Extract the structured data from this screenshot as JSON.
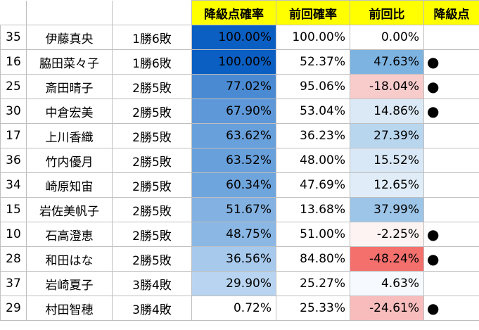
{
  "headers": {
    "prob": "降級点確率",
    "prev": "前回確率",
    "diff": "前回比",
    "mark": "降級点"
  },
  "rows": [
    {
      "num": "35",
      "name": "伊藤真央",
      "record": "1勝6敗",
      "prob": "100.00%",
      "prev": "100.00%",
      "diff": "0.00%",
      "mark": "",
      "prob_bg": "#0b5fc2",
      "diff_bg": "#ffffff"
    },
    {
      "num": "16",
      "name": "脇田菜々子",
      "record": "1勝6敗",
      "prob": "100.00%",
      "prev": "52.37%",
      "diff": "47.63%",
      "mark": "●",
      "prob_bg": "#0b5fc2",
      "diff_bg": "#7db3e0"
    },
    {
      "num": "25",
      "name": "斎田晴子",
      "record": "2勝5敗",
      "prob": "77.02%",
      "prev": "95.06%",
      "diff": "-18.04%",
      "mark": "●",
      "prob_bg": "#4a8ad2",
      "diff_bg": "#f9cccc"
    },
    {
      "num": "30",
      "name": "中倉宏美",
      "record": "2勝5敗",
      "prob": "67.90%",
      "prev": "53.04%",
      "diff": "14.86%",
      "mark": "●",
      "prob_bg": "#5e98d8",
      "diff_bg": "#dbe9f6"
    },
    {
      "num": "17",
      "name": "上川香織",
      "record": "2勝5敗",
      "prob": "63.62%",
      "prev": "36.23%",
      "diff": "27.39%",
      "mark": "",
      "prob_bg": "#68a0db",
      "diff_bg": "#b9d6ef"
    },
    {
      "num": "36",
      "name": "竹内優月",
      "record": "2勝5敗",
      "prob": "63.52%",
      "prev": "48.00%",
      "diff": "15.52%",
      "mark": "",
      "prob_bg": "#68a0db",
      "diff_bg": "#d9e8f6"
    },
    {
      "num": "34",
      "name": "崎原知宙",
      "record": "2勝5敗",
      "prob": "60.34%",
      "prev": "47.69%",
      "diff": "12.65%",
      "mark": "",
      "prob_bg": "#6fa5dd",
      "diff_bg": "#e0edf8"
    },
    {
      "num": "15",
      "name": "岩佐美帆子",
      "record": "2勝5敗",
      "prob": "51.67%",
      "prev": "13.68%",
      "diff": "37.99%",
      "mark": "",
      "prob_bg": "#83b2e2",
      "diff_bg": "#9cc5e8"
    },
    {
      "num": "10",
      "name": "石高澄恵",
      "record": "2勝5敗",
      "prob": "48.75%",
      "prev": "51.00%",
      "diff": "-2.25%",
      "mark": "●",
      "prob_bg": "#8ab7e4",
      "diff_bg": "#fdf3f3"
    },
    {
      "num": "28",
      "name": "和田はな",
      "record": "2勝5敗",
      "prob": "36.56%",
      "prev": "84.80%",
      "diff": "-48.24%",
      "mark": "●",
      "prob_bg": "#a7c9ec",
      "diff_bg": "#f3706c"
    },
    {
      "num": "37",
      "name": "岩崎夏子",
      "record": "3勝4敗",
      "prob": "29.90%",
      "prev": "25.27%",
      "diff": "4.63%",
      "mark": "",
      "prob_bg": "#b8d4f0",
      "diff_bg": "#f6f9fd"
    },
    {
      "num": "29",
      "name": "村田智穂",
      "record": "3勝4敗",
      "prob": "0.72%",
      "prev": "25.33%",
      "diff": "-24.61%",
      "mark": "●",
      "prob_bg": "#ffffff",
      "diff_bg": "#f8bcbc"
    }
  ]
}
